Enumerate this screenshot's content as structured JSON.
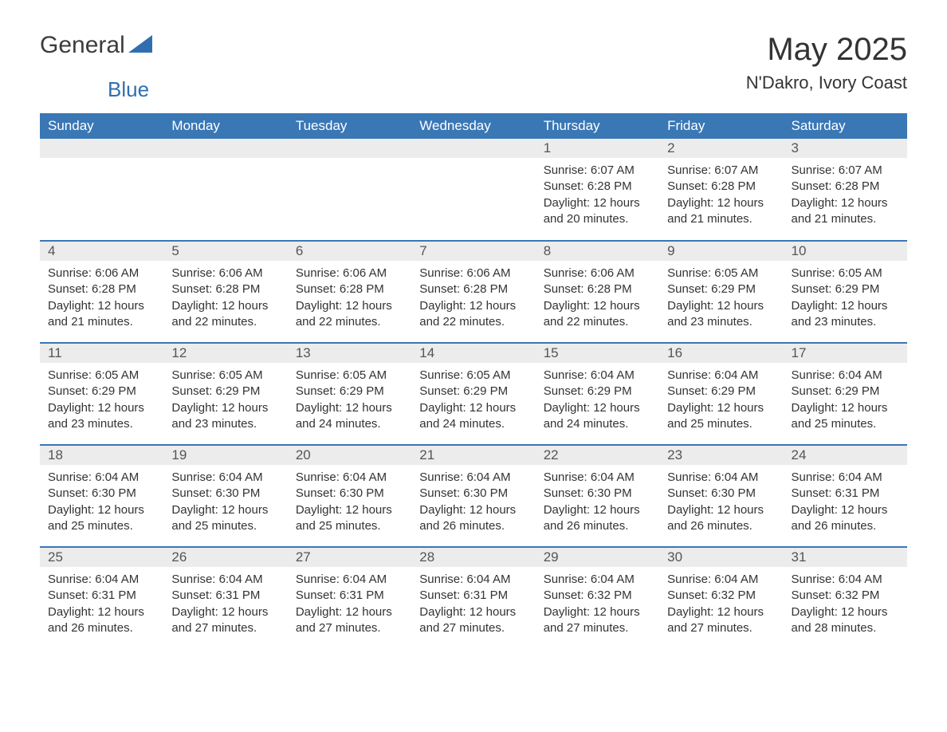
{
  "logo": {
    "text1": "General",
    "text2": "Blue"
  },
  "title": "May 2025",
  "location": "N'Dakro, Ivory Coast",
  "colors": {
    "header_bg": "#3a77b5",
    "header_text": "#ffffff",
    "daynum_bg": "#ececec",
    "daynum_text": "#555555",
    "body_text": "#333333",
    "border": "#3a77b5",
    "logo_blue": "#2f6fb0",
    "page_bg": "#ffffff"
  },
  "typography": {
    "font_family": "Arial",
    "month_title_fontsize": 40,
    "location_fontsize": 22,
    "header_fontsize": 17,
    "daynum_fontsize": 17,
    "body_fontsize": 15
  },
  "day_headers": [
    "Sunday",
    "Monday",
    "Tuesday",
    "Wednesday",
    "Thursday",
    "Friday",
    "Saturday"
  ],
  "weeks": [
    [
      null,
      null,
      null,
      null,
      {
        "n": "1",
        "sunrise": "Sunrise: 6:07 AM",
        "sunset": "Sunset: 6:28 PM",
        "day1": "Daylight: 12 hours",
        "day2": "and 20 minutes."
      },
      {
        "n": "2",
        "sunrise": "Sunrise: 6:07 AM",
        "sunset": "Sunset: 6:28 PM",
        "day1": "Daylight: 12 hours",
        "day2": "and 21 minutes."
      },
      {
        "n": "3",
        "sunrise": "Sunrise: 6:07 AM",
        "sunset": "Sunset: 6:28 PM",
        "day1": "Daylight: 12 hours",
        "day2": "and 21 minutes."
      }
    ],
    [
      {
        "n": "4",
        "sunrise": "Sunrise: 6:06 AM",
        "sunset": "Sunset: 6:28 PM",
        "day1": "Daylight: 12 hours",
        "day2": "and 21 minutes."
      },
      {
        "n": "5",
        "sunrise": "Sunrise: 6:06 AM",
        "sunset": "Sunset: 6:28 PM",
        "day1": "Daylight: 12 hours",
        "day2": "and 22 minutes."
      },
      {
        "n": "6",
        "sunrise": "Sunrise: 6:06 AM",
        "sunset": "Sunset: 6:28 PM",
        "day1": "Daylight: 12 hours",
        "day2": "and 22 minutes."
      },
      {
        "n": "7",
        "sunrise": "Sunrise: 6:06 AM",
        "sunset": "Sunset: 6:28 PM",
        "day1": "Daylight: 12 hours",
        "day2": "and 22 minutes."
      },
      {
        "n": "8",
        "sunrise": "Sunrise: 6:06 AM",
        "sunset": "Sunset: 6:28 PM",
        "day1": "Daylight: 12 hours",
        "day2": "and 22 minutes."
      },
      {
        "n": "9",
        "sunrise": "Sunrise: 6:05 AM",
        "sunset": "Sunset: 6:29 PM",
        "day1": "Daylight: 12 hours",
        "day2": "and 23 minutes."
      },
      {
        "n": "10",
        "sunrise": "Sunrise: 6:05 AM",
        "sunset": "Sunset: 6:29 PM",
        "day1": "Daylight: 12 hours",
        "day2": "and 23 minutes."
      }
    ],
    [
      {
        "n": "11",
        "sunrise": "Sunrise: 6:05 AM",
        "sunset": "Sunset: 6:29 PM",
        "day1": "Daylight: 12 hours",
        "day2": "and 23 minutes."
      },
      {
        "n": "12",
        "sunrise": "Sunrise: 6:05 AM",
        "sunset": "Sunset: 6:29 PM",
        "day1": "Daylight: 12 hours",
        "day2": "and 23 minutes."
      },
      {
        "n": "13",
        "sunrise": "Sunrise: 6:05 AM",
        "sunset": "Sunset: 6:29 PM",
        "day1": "Daylight: 12 hours",
        "day2": "and 24 minutes."
      },
      {
        "n": "14",
        "sunrise": "Sunrise: 6:05 AM",
        "sunset": "Sunset: 6:29 PM",
        "day1": "Daylight: 12 hours",
        "day2": "and 24 minutes."
      },
      {
        "n": "15",
        "sunrise": "Sunrise: 6:04 AM",
        "sunset": "Sunset: 6:29 PM",
        "day1": "Daylight: 12 hours",
        "day2": "and 24 minutes."
      },
      {
        "n": "16",
        "sunrise": "Sunrise: 6:04 AM",
        "sunset": "Sunset: 6:29 PM",
        "day1": "Daylight: 12 hours",
        "day2": "and 25 minutes."
      },
      {
        "n": "17",
        "sunrise": "Sunrise: 6:04 AM",
        "sunset": "Sunset: 6:29 PM",
        "day1": "Daylight: 12 hours",
        "day2": "and 25 minutes."
      }
    ],
    [
      {
        "n": "18",
        "sunrise": "Sunrise: 6:04 AM",
        "sunset": "Sunset: 6:30 PM",
        "day1": "Daylight: 12 hours",
        "day2": "and 25 minutes."
      },
      {
        "n": "19",
        "sunrise": "Sunrise: 6:04 AM",
        "sunset": "Sunset: 6:30 PM",
        "day1": "Daylight: 12 hours",
        "day2": "and 25 minutes."
      },
      {
        "n": "20",
        "sunrise": "Sunrise: 6:04 AM",
        "sunset": "Sunset: 6:30 PM",
        "day1": "Daylight: 12 hours",
        "day2": "and 25 minutes."
      },
      {
        "n": "21",
        "sunrise": "Sunrise: 6:04 AM",
        "sunset": "Sunset: 6:30 PM",
        "day1": "Daylight: 12 hours",
        "day2": "and 26 minutes."
      },
      {
        "n": "22",
        "sunrise": "Sunrise: 6:04 AM",
        "sunset": "Sunset: 6:30 PM",
        "day1": "Daylight: 12 hours",
        "day2": "and 26 minutes."
      },
      {
        "n": "23",
        "sunrise": "Sunrise: 6:04 AM",
        "sunset": "Sunset: 6:30 PM",
        "day1": "Daylight: 12 hours",
        "day2": "and 26 minutes."
      },
      {
        "n": "24",
        "sunrise": "Sunrise: 6:04 AM",
        "sunset": "Sunset: 6:31 PM",
        "day1": "Daylight: 12 hours",
        "day2": "and 26 minutes."
      }
    ],
    [
      {
        "n": "25",
        "sunrise": "Sunrise: 6:04 AM",
        "sunset": "Sunset: 6:31 PM",
        "day1": "Daylight: 12 hours",
        "day2": "and 26 minutes."
      },
      {
        "n": "26",
        "sunrise": "Sunrise: 6:04 AM",
        "sunset": "Sunset: 6:31 PM",
        "day1": "Daylight: 12 hours",
        "day2": "and 27 minutes."
      },
      {
        "n": "27",
        "sunrise": "Sunrise: 6:04 AM",
        "sunset": "Sunset: 6:31 PM",
        "day1": "Daylight: 12 hours",
        "day2": "and 27 minutes."
      },
      {
        "n": "28",
        "sunrise": "Sunrise: 6:04 AM",
        "sunset": "Sunset: 6:31 PM",
        "day1": "Daylight: 12 hours",
        "day2": "and 27 minutes."
      },
      {
        "n": "29",
        "sunrise": "Sunrise: 6:04 AM",
        "sunset": "Sunset: 6:32 PM",
        "day1": "Daylight: 12 hours",
        "day2": "and 27 minutes."
      },
      {
        "n": "30",
        "sunrise": "Sunrise: 6:04 AM",
        "sunset": "Sunset: 6:32 PM",
        "day1": "Daylight: 12 hours",
        "day2": "and 27 minutes."
      },
      {
        "n": "31",
        "sunrise": "Sunrise: 6:04 AM",
        "sunset": "Sunset: 6:32 PM",
        "day1": "Daylight: 12 hours",
        "day2": "and 28 minutes."
      }
    ]
  ]
}
